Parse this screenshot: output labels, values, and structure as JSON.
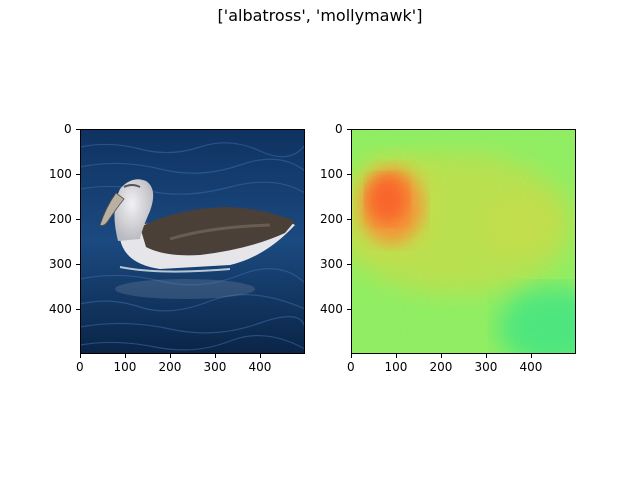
{
  "figure": {
    "title": "['albatross', 'mollymawk']"
  },
  "chart_data": [
    {
      "type": "image",
      "name": "input-photo",
      "content": "albatross on dark blue water",
      "xlim": [
        0,
        500
      ],
      "ylim": [
        500,
        0
      ],
      "xticks": [
        0,
        100,
        200,
        300,
        400
      ],
      "yticks": [
        0,
        100,
        200,
        300,
        400
      ],
      "colors": {
        "water_dark": "#0c2a52",
        "water_mid": "#1d4f86",
        "bird_white": "#e7e7ea",
        "bird_brown": "#4b4038"
      }
    },
    {
      "type": "heatmap",
      "name": "saliency-map",
      "colormap": "turbo-like (green low, orange high)",
      "xlim": [
        0,
        500
      ],
      "ylim": [
        500,
        0
      ],
      "xticks": [
        0,
        100,
        200,
        300,
        400
      ],
      "yticks": [
        0,
        100,
        200,
        300,
        400
      ],
      "hotspots": [
        {
          "x": 90,
          "y": 170,
          "level": "high"
        },
        {
          "x": 370,
          "y": 210,
          "level": "medium"
        }
      ],
      "coldspots": [
        {
          "x": 450,
          "y": 440,
          "level": "low"
        }
      ],
      "colors": {
        "low": "#30e880",
        "base": "#8cf25a",
        "mid": "#c8e040",
        "high": "#ff5a1a"
      }
    }
  ]
}
